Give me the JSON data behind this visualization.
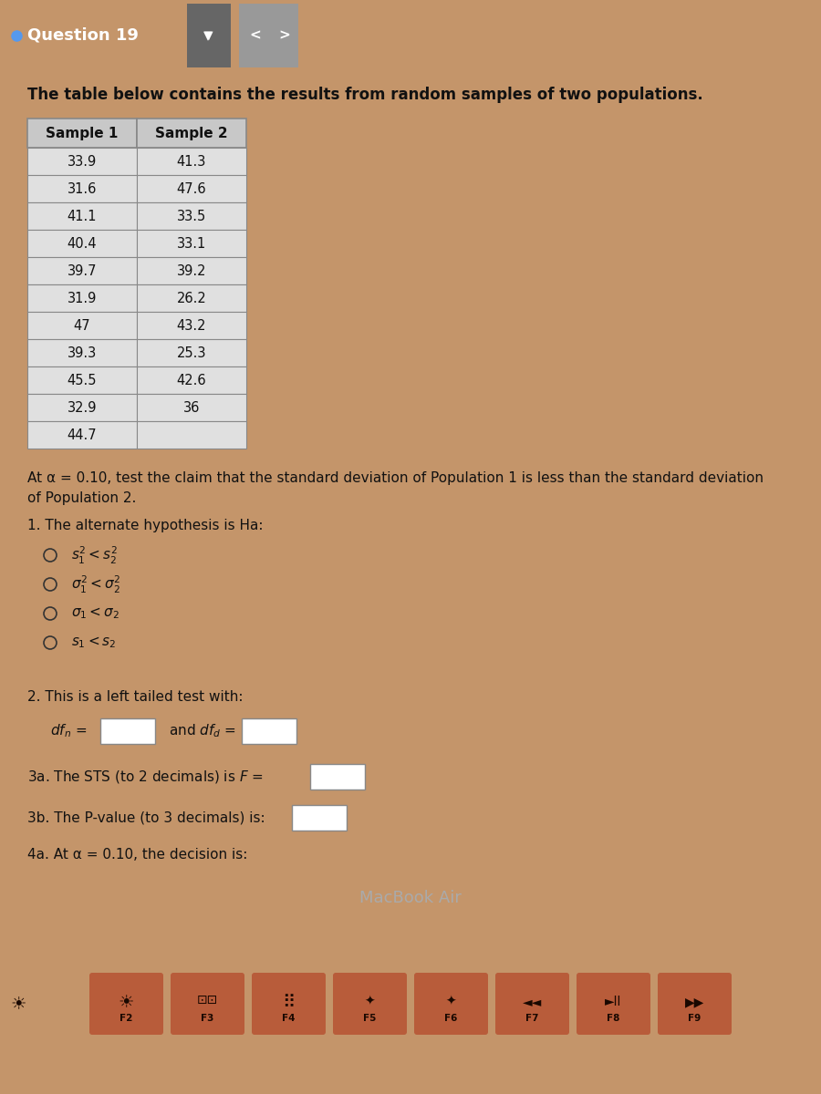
{
  "title": "Question 19",
  "intro_text": "The table below contains the results from random samples of two populations.",
  "sample1": [
    33.9,
    31.6,
    41.1,
    40.4,
    39.7,
    31.9,
    47,
    39.3,
    45.5,
    32.9,
    44.7
  ],
  "sample2": [
    41.3,
    47.6,
    33.5,
    33.1,
    39.2,
    26.2,
    43.2,
    25.3,
    42.6,
    36
  ],
  "claim_text_1": "At α = 0.10, test the claim that the standard deviation of Population 1 is less than the standard deviation",
  "claim_text_2": "of Population 2.",
  "q1_label": "1. The alternate hypothesis is Ha:",
  "q2_label": "2. This is a left tailed test with:",
  "q3a_label": "3a. The STS (to 2 decimals) is F =",
  "q3b_label": "3b. The P-value (to 3 decimals) is:",
  "q4a_label": "4a. At α = 0.10, the decision is:",
  "macbook_text": "MacBook Air",
  "bg_screen": "#e8e5dc",
  "bg_top_bar": "#3a3a3a",
  "bg_laptop_body": "#222222",
  "bg_laptop_rim": "#555555",
  "bg_keyboard_area": "#c4956a",
  "table_header_bg": "#c8c8c8",
  "table_cell_bg": "#e0e0e0",
  "key_color": "#b85c3a",
  "key_labels": [
    "F2",
    "F3",
    "F4",
    "F5",
    "F6",
    "F7",
    "F8",
    "F9"
  ],
  "q1_options_latex": [
    "$s_1^2 < s_2^2$",
    "$\\sigma_1^2 < \\sigma_2^2$",
    "$\\sigma_1 < \\sigma_2$",
    "$s_1 < s_2$"
  ],
  "q1_selected": -1
}
